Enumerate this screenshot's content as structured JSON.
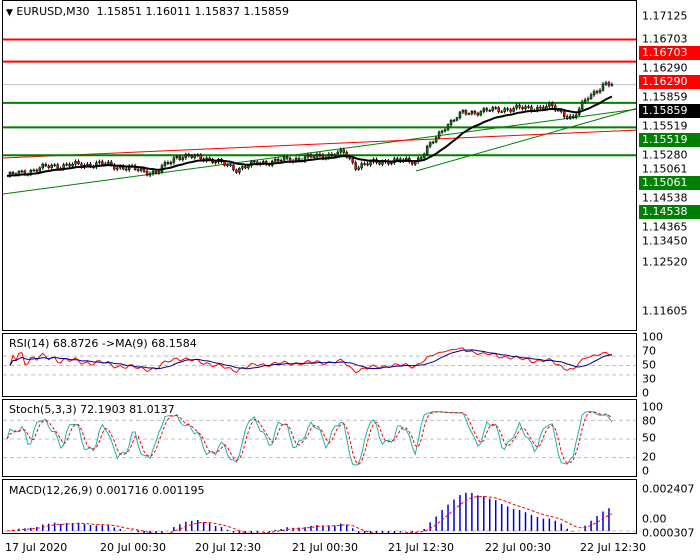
{
  "header": {
    "symbol": "EURUSD,M30",
    "ohlc": "1.15851 1.16011 1.15837 1.15859"
  },
  "price_axis": [
    "1.17125",
    "1.16703",
    "1.16290",
    "1.15859",
    "1.15519",
    "1.15280",
    "1.15061",
    "1.14538",
    "1.14365",
    "1.13450",
    "1.12520",
    "1.11605"
  ],
  "levels": [
    {
      "value": "1.16703",
      "color": "#ff0000"
    },
    {
      "value": "1.16290",
      "color": "#ff0000"
    },
    {
      "value": "1.15859",
      "color": "#000000"
    },
    {
      "value": "1.15519",
      "color": "#008000"
    },
    {
      "value": "1.15061",
      "color": "#008000"
    },
    {
      "value": "1.14538",
      "color": "#008000"
    }
  ],
  "rsi": {
    "label": "RSI(14) 68.8726  ->MA(9) 68.1584",
    "axis": [
      "100",
      "70",
      "50",
      "30",
      "0"
    ]
  },
  "stoch": {
    "label": "Stoch(5,3,3) 72.1903 81.0137",
    "axis": [
      "100",
      "80",
      "50",
      "20",
      "0"
    ]
  },
  "macd": {
    "label": "MACD(12,26,9) 0.001716 0.001195",
    "axis": [
      "0.002407",
      "0.00",
      "0.000307"
    ]
  },
  "time_axis": [
    "17 Jul 2020",
    "20 Jul 00:30",
    "20 Jul 12:30",
    "21 Jul 00:30",
    "21 Jul 12:30",
    "22 Jul 00:30",
    "22 Jul 12:30"
  ],
  "chart_data": {
    "type": "candlestick",
    "title": "EURUSD,M30",
    "ylim": [
      1.1145,
      1.1725
    ],
    "close_path": [
      [
        0,
        1.1415
      ],
      [
        15,
        1.1434
      ],
      [
        32,
        1.14375
      ],
      [
        40,
        1.143
      ],
      [
        50,
        1.14206
      ],
      [
        57,
        1.14524
      ],
      [
        67,
        1.14487
      ],
      [
        77,
        1.14281
      ],
      [
        84,
        1.14393
      ],
      [
        100,
        1.14487
      ],
      [
        113,
        1.14581
      ],
      [
        117,
        1.14337
      ],
      [
        127,
        1.14431
      ],
      [
        137,
        1.14431
      ],
      [
        140,
        1.14581
      ],
      [
        147,
        1.15086
      ],
      [
        153,
        1.15329
      ],
      [
        167,
        1.15404
      ],
      [
        183,
        1.15441
      ],
      [
        190,
        1.15217
      ],
      [
        195,
        1.15647
      ],
      [
        200,
        1.15834
      ],
      [
        203,
        1.15859
      ]
    ]
  }
}
